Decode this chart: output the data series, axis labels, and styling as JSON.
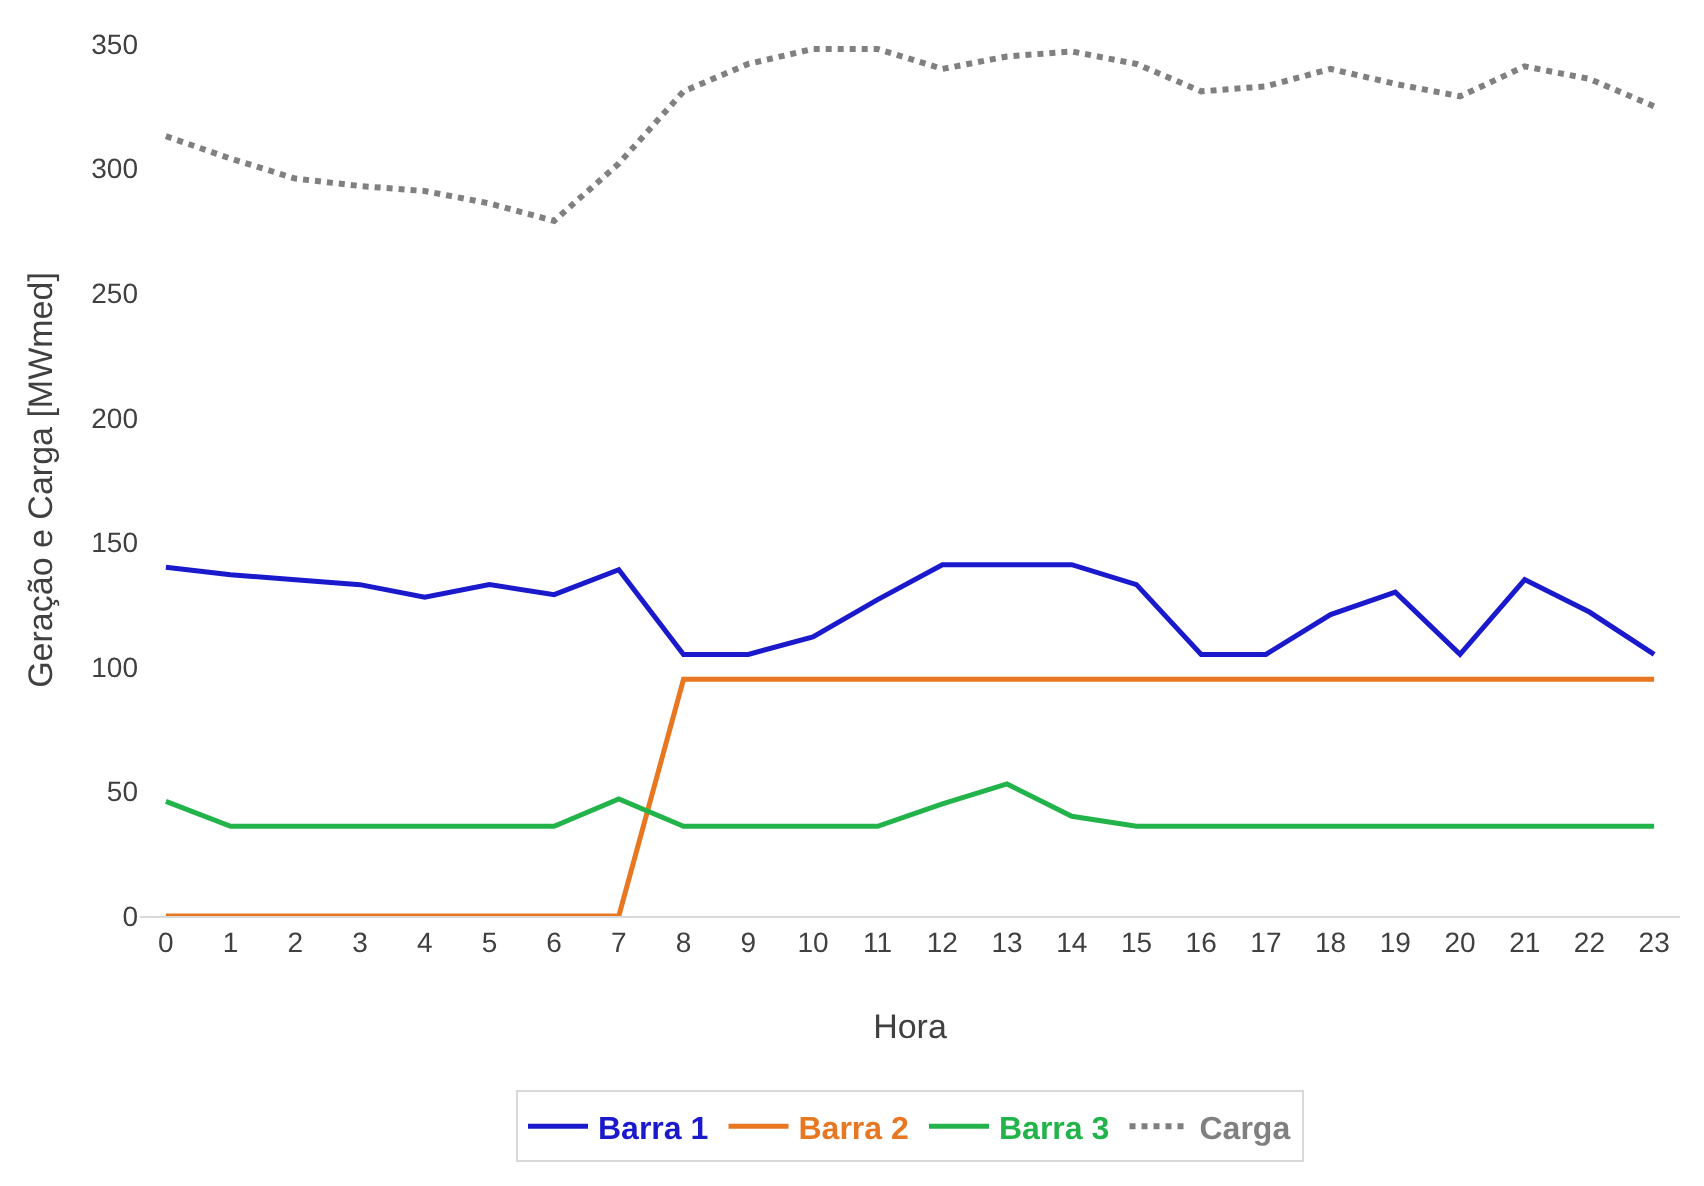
{
  "chart_data": {
    "type": "line",
    "xlabel": "Hora",
    "ylabel": "Geração e Carga [MWmed]",
    "x": [
      0,
      1,
      2,
      3,
      4,
      5,
      6,
      7,
      8,
      9,
      10,
      11,
      12,
      13,
      14,
      15,
      16,
      17,
      18,
      19,
      20,
      21,
      22,
      23
    ],
    "xlim": [
      -0.4,
      23.4
    ],
    "xticks": [
      0,
      1,
      2,
      3,
      4,
      5,
      6,
      7,
      8,
      9,
      10,
      11,
      12,
      13,
      14,
      15,
      16,
      17,
      18,
      19,
      20,
      21,
      22,
      23
    ],
    "ylim": [
      0,
      350
    ],
    "yticks": [
      0,
      50,
      100,
      150,
      200,
      250,
      300,
      350
    ],
    "grid": false,
    "legend": "bottom",
    "marker": "none",
    "series": [
      {
        "name": "Barra 1",
        "color": "#1a1acc",
        "line_style": "solid",
        "values": [
          140,
          137,
          135,
          133,
          128,
          133,
          129,
          139,
          105,
          105,
          112,
          127,
          141,
          141,
          141,
          133,
          105,
          105,
          121,
          130,
          105,
          135,
          122,
          105
        ]
      },
      {
        "name": "Barra 2",
        "color": "#e87722",
        "line_style": "solid",
        "values": [
          0,
          0,
          0,
          0,
          0,
          0,
          0,
          0,
          95,
          95,
          95,
          95,
          95,
          95,
          95,
          95,
          95,
          95,
          95,
          95,
          95,
          95,
          95,
          95
        ]
      },
      {
        "name": "Barra 3",
        "color": "#22b44a",
        "line_style": "solid",
        "values": [
          46,
          36,
          36,
          36,
          36,
          36,
          36,
          47,
          36,
          36,
          36,
          36,
          45,
          53,
          40,
          36,
          36,
          36,
          36,
          36,
          36,
          36,
          36,
          36
        ]
      },
      {
        "name": "Carga",
        "color": "#808080",
        "line_style": "dotted",
        "values": [
          313,
          304,
          296,
          293,
          291,
          286,
          279,
          302,
          331,
          342,
          348,
          348,
          340,
          345,
          347,
          342,
          331,
          333,
          340,
          334,
          329,
          341,
          336,
          325
        ]
      }
    ]
  }
}
